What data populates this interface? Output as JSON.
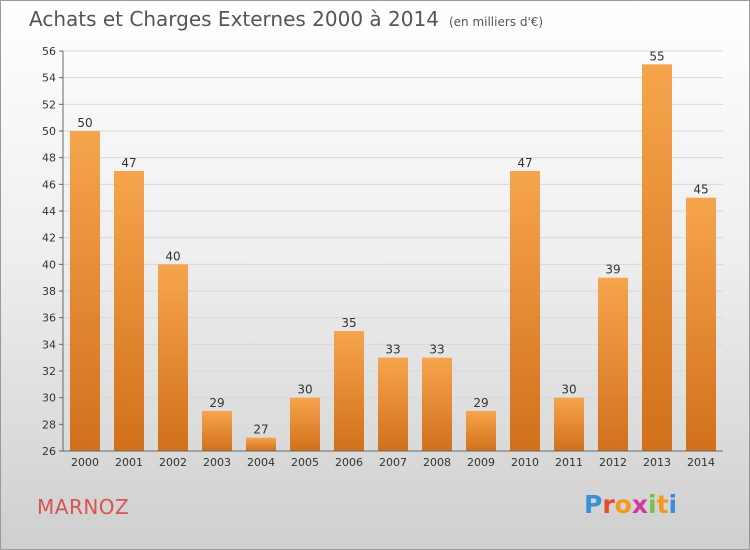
{
  "title": "Achats et Charges Externes 2000 à 2014",
  "unit": "(en milliers d'€)",
  "commune": "MARNOZ",
  "logo": {
    "letters": [
      "P",
      "r",
      "o",
      "x",
      "i",
      "t",
      "i"
    ],
    "colors": [
      "#3a8fd6",
      "#e64b2b",
      "#f29a1f",
      "#d13a9a",
      "#7bc142",
      "#f29a1f",
      "#3a8fd6"
    ]
  },
  "colors": {
    "bar_top": "#f6a54c",
    "bar_bottom": "#d2701c",
    "grid": "#d8d8d8",
    "axis": "#666666",
    "text": "#333333",
    "title": "#555555",
    "commune": "#d9534f"
  },
  "chart_data": {
    "type": "bar",
    "title": "Achats et Charges Externes 2000 à 2014",
    "subtitle": "(en milliers d'€)",
    "xlabel": "",
    "ylabel": "",
    "categories": [
      "2000",
      "2001",
      "2002",
      "2003",
      "2004",
      "2005",
      "2006",
      "2007",
      "2008",
      "2009",
      "2010",
      "2011",
      "2012",
      "2013",
      "2014"
    ],
    "values": [
      50,
      47,
      40,
      29,
      27,
      30,
      35,
      33,
      33,
      29,
      47,
      30,
      39,
      55,
      45
    ],
    "ylim": [
      26,
      56
    ],
    "yticks": [
      26,
      28,
      30,
      32,
      34,
      36,
      38,
      40,
      42,
      44,
      46,
      48,
      50,
      52,
      54,
      56
    ],
    "grid": true,
    "legend": "none"
  }
}
